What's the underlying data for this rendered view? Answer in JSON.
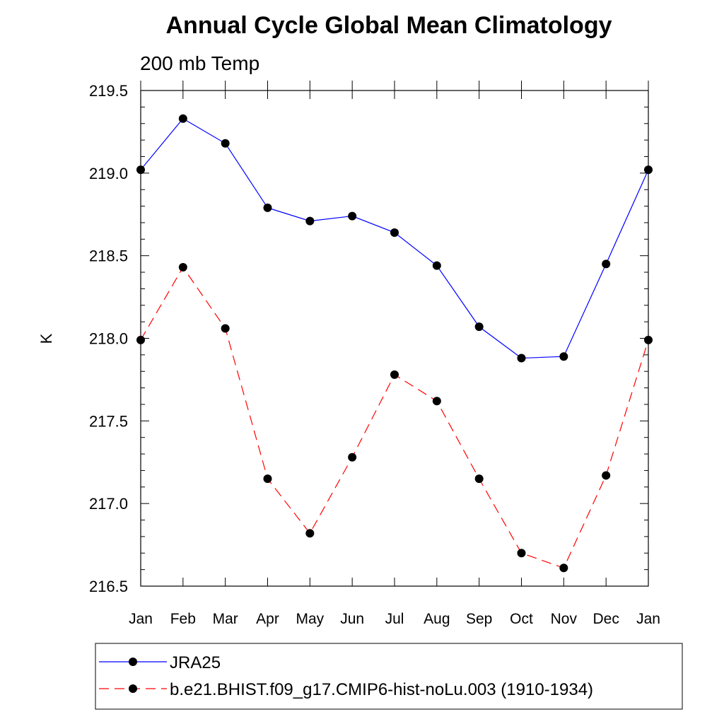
{
  "chart_data": {
    "type": "line",
    "title": "Annual Cycle Global Mean Climatology",
    "subtitle": "200 mb Temp",
    "xlabel": "",
    "ylabel": "K",
    "categories": [
      "Jan",
      "Feb",
      "Mar",
      "Apr",
      "May",
      "Jun",
      "Jul",
      "Aug",
      "Sep",
      "Oct",
      "Nov",
      "Dec",
      "Jan"
    ],
    "ylim": [
      216.5,
      219.5
    ],
    "yticks": [
      "216.5",
      "217.0",
      "217.5",
      "218.0",
      "218.5",
      "219.0",
      "219.5"
    ],
    "grid": false,
    "legend_position": "bottom",
    "series": [
      {
        "name": "JRA25",
        "color": "#0000ff",
        "line_style": "solid",
        "marker": "filled-circle",
        "values": [
          219.02,
          219.33,
          219.18,
          218.79,
          218.71,
          218.74,
          218.64,
          218.44,
          218.07,
          217.88,
          217.89,
          218.45,
          219.02
        ]
      },
      {
        "name": "b.e21.BHIST.f09_g17.CMIP6-hist-noLu.003 (1910-1934)",
        "color": "#ff0000",
        "line_style": "dashed",
        "marker": "filled-circle",
        "values": [
          217.99,
          218.43,
          218.06,
          217.15,
          216.82,
          217.28,
          217.78,
          217.62,
          217.15,
          216.7,
          216.61,
          217.17,
          217.99
        ]
      }
    ]
  }
}
